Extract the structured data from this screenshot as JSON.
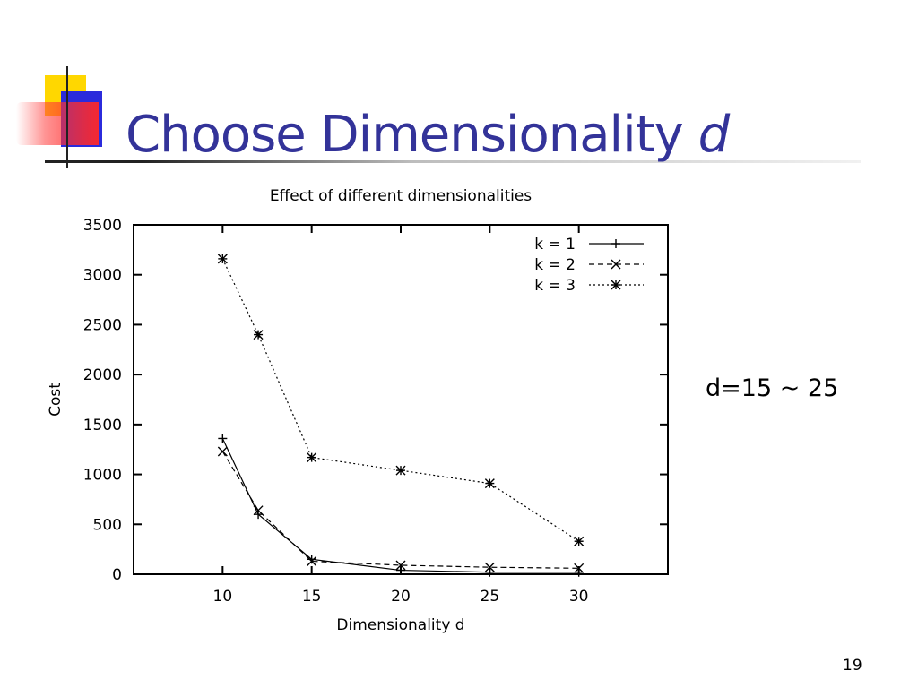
{
  "slide": {
    "title_main": "Choose Dimensionality",
    "title_var": "d",
    "note": "d=15 ~ 25",
    "page_number": "19"
  },
  "colors": {
    "title": "#333399",
    "accent_yellow": "#ffd700",
    "accent_blue": "#2b2bdc",
    "accent_red": "#ff3c3c"
  },
  "chart_data": {
    "type": "line",
    "title": "Effect of different dimensionalities",
    "xlabel": "Dimensionality d",
    "ylabel": "Cost",
    "xlim": [
      5,
      35
    ],
    "ylim": [
      0,
      3500
    ],
    "xticks": [
      10,
      15,
      20,
      25,
      30
    ],
    "yticks": [
      0,
      500,
      1000,
      1500,
      2000,
      2500,
      3000,
      3500
    ],
    "grid": false,
    "legend_position": "top-right",
    "x": [
      10,
      12,
      15,
      20,
      25,
      30
    ],
    "series": [
      {
        "name": "k = 1",
        "values": [
          1360,
          600,
          150,
          40,
          20,
          20
        ],
        "marker": "plus",
        "dash": "solid"
      },
      {
        "name": "k = 2",
        "values": [
          1230,
          640,
          130,
          90,
          70,
          60
        ],
        "marker": "cross",
        "dash": "dashed"
      },
      {
        "name": "k = 3",
        "values": [
          3160,
          2400,
          1170,
          1040,
          910,
          330
        ],
        "marker": "star",
        "dash": "dotted"
      }
    ]
  }
}
